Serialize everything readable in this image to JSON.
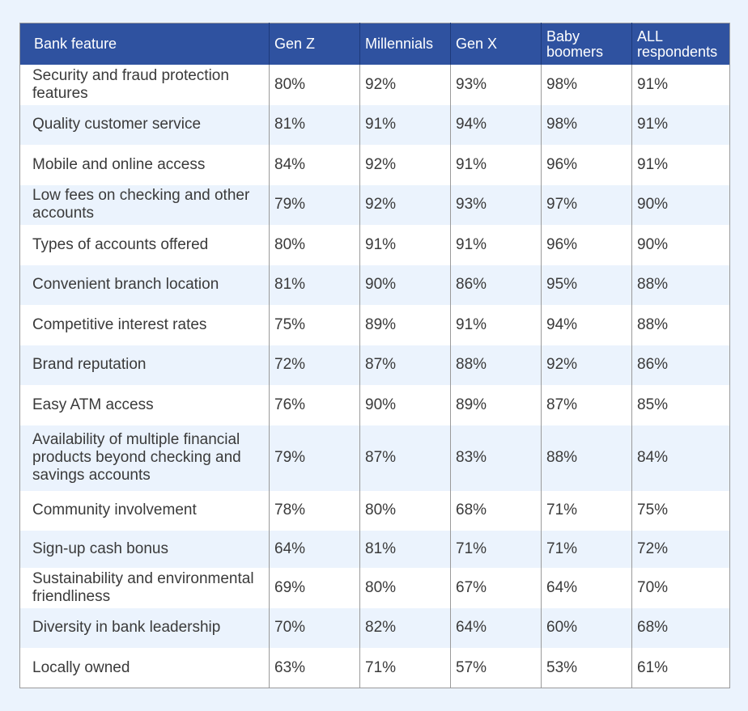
{
  "table": {
    "headers": [
      "Bank feature",
      "Gen Z",
      "Millennials",
      "Gen X",
      "Baby boomers",
      "ALL respondents"
    ],
    "rows": [
      {
        "feature": "Security and fraud protection features",
        "values": [
          "80%",
          "92%",
          "93%",
          "98%",
          "91%"
        ]
      },
      {
        "feature": "Quality customer service",
        "values": [
          "81%",
          "91%",
          "94%",
          "98%",
          "91%"
        ]
      },
      {
        "feature": "Mobile and online access",
        "values": [
          "84%",
          "92%",
          "91%",
          "96%",
          "91%"
        ]
      },
      {
        "feature": "Low fees on checking and other accounts",
        "values": [
          "79%",
          "92%",
          "93%",
          "97%",
          "90%"
        ]
      },
      {
        "feature": "Types of accounts offered",
        "values": [
          "80%",
          "91%",
          "91%",
          "96%",
          "90%"
        ]
      },
      {
        "feature": "Convenient branch location",
        "values": [
          "81%",
          "90%",
          "86%",
          "95%",
          "88%"
        ]
      },
      {
        "feature": "Competitive interest rates",
        "values": [
          "75%",
          "89%",
          "91%",
          "94%",
          "88%"
        ]
      },
      {
        "feature": "Brand reputation",
        "values": [
          "72%",
          "87%",
          "88%",
          "92%",
          "86%"
        ]
      },
      {
        "feature": "Easy ATM access",
        "values": [
          "76%",
          "90%",
          "89%",
          "87%",
          "85%"
        ]
      },
      {
        "feature": "Availability of multiple financial products beyond checking and savings accounts",
        "values": [
          "79%",
          "87%",
          "83%",
          "88%",
          "84%"
        ]
      },
      {
        "feature": "Community involvement",
        "values": [
          "78%",
          "80%",
          "68%",
          "71%",
          "75%"
        ]
      },
      {
        "feature": "Sign-up cash bonus",
        "values": [
          "64%",
          "81%",
          "71%",
          "71%",
          "72%"
        ]
      },
      {
        "feature": "Sustainability and environmental friendliness",
        "values": [
          "69%",
          "80%",
          "67%",
          "64%",
          "70%"
        ]
      },
      {
        "feature": "Diversity in bank leadership",
        "values": [
          "70%",
          "82%",
          "64%",
          "60%",
          "68%"
        ]
      },
      {
        "feature": "Locally owned",
        "values": [
          "63%",
          "71%",
          "57%",
          "53%",
          "61%"
        ]
      }
    ]
  },
  "colors": {
    "header_bg": "#2f52a0",
    "header_text": "#ffffff",
    "row_alt_bg": "#ebf3fd",
    "row_bg": "#ffffff",
    "page_bg": "#ebf3fd"
  }
}
